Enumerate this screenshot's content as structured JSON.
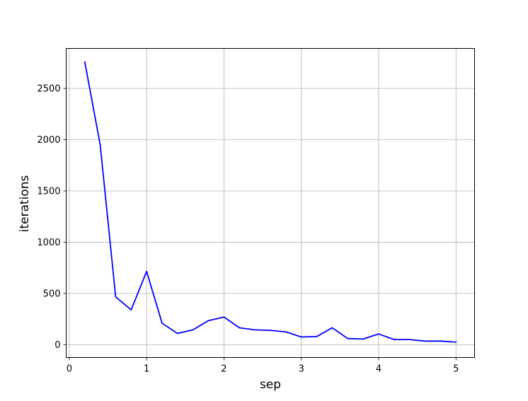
{
  "chart_data": {
    "type": "line",
    "title": "",
    "xlabel": "sep",
    "ylabel": "iterations",
    "xlim": [
      -0.04,
      5.24
    ],
    "ylim": [
      -125,
      2890
    ],
    "grid": true,
    "legend": "none",
    "xticks": [
      0,
      1,
      2,
      3,
      4,
      5
    ],
    "xtick_labels": [
      "0",
      "1",
      "2",
      "3",
      "4",
      "5"
    ],
    "yticks": [
      0,
      500,
      1000,
      1500,
      2000,
      2500
    ],
    "ytick_labels": [
      "0",
      "500",
      "1000",
      "1500",
      "2000",
      "2500"
    ],
    "series": [
      {
        "color": "#0000ff",
        "x": [
          0.2,
          0.4,
          0.6,
          0.8,
          1.0,
          1.2,
          1.4,
          1.6,
          1.8,
          2.0,
          2.2,
          2.4,
          2.6,
          2.8,
          3.0,
          3.2,
          3.4,
          3.6,
          3.8,
          4.0,
          4.2,
          4.4,
          4.6,
          4.8,
          5.0
        ],
        "y": [
          2760,
          1950,
          465,
          340,
          715,
          210,
          110,
          145,
          235,
          270,
          165,
          145,
          140,
          125,
          75,
          80,
          165,
          60,
          55,
          105,
          50,
          50,
          35,
          35,
          25
        ]
      }
    ]
  }
}
